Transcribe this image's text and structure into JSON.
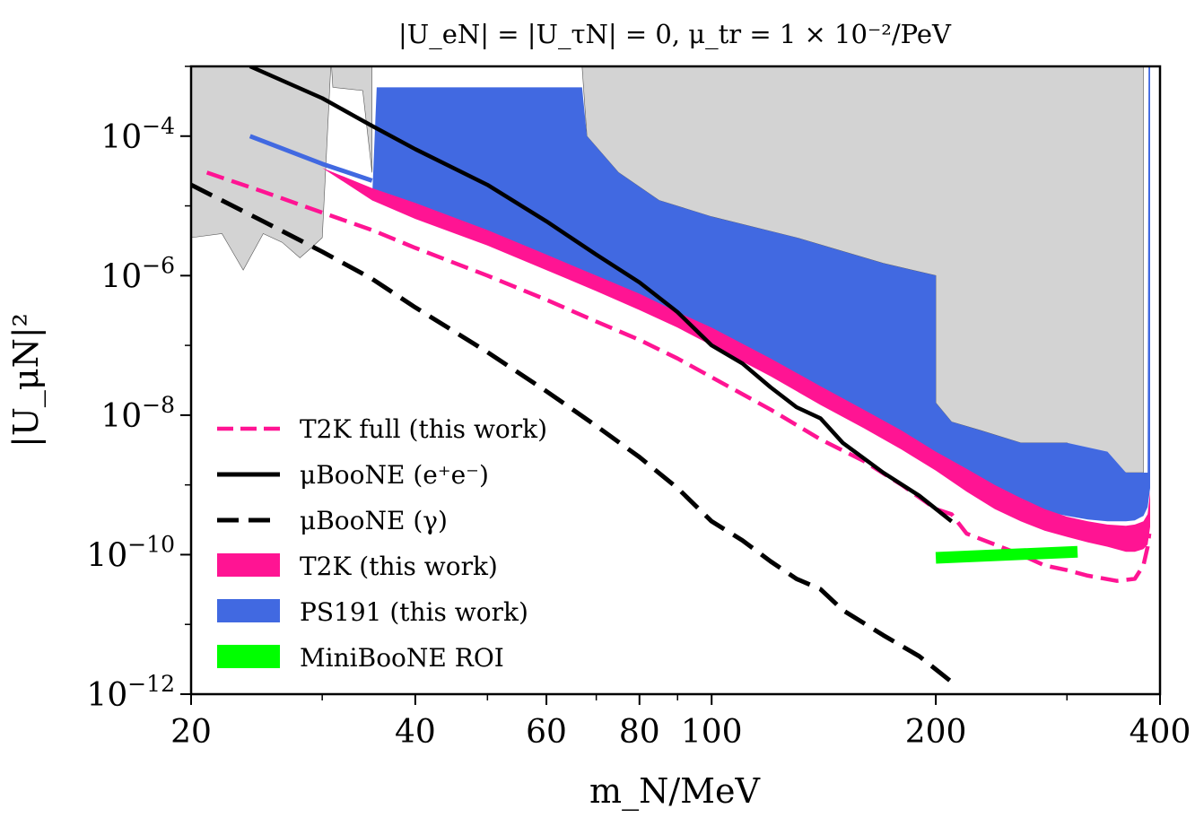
{
  "chart_data": {
    "type": "line",
    "title": "|U_eN| = |U_τN| = 0,  μ_tr = 1 × 10⁻²/PeV",
    "xlabel": "m_N/MeV",
    "ylabel": "|U_μN|²",
    "xscale": "log",
    "yscale": "log",
    "xlim": [
      20,
      400
    ],
    "ylim": [
      1e-12,
      0.001
    ],
    "x_ticks": [
      {
        "value": 20,
        "label": "20"
      },
      {
        "value": 40,
        "label": "40"
      },
      {
        "value": 60,
        "label": "60"
      },
      {
        "value": 80,
        "label": "80"
      },
      {
        "value": 100,
        "label": "100"
      },
      {
        "value": 200,
        "label": "200"
      },
      {
        "value": 400,
        "label": "400"
      }
    ],
    "y_ticks": [
      {
        "value": 1e-12,
        "base": "10",
        "exp": "−12"
      },
      {
        "value": 1e-10,
        "base": "10",
        "exp": "−10"
      },
      {
        "value": 1e-08,
        "base": "10",
        "exp": "−8"
      },
      {
        "value": 1e-06,
        "base": "10",
        "exp": "−6"
      },
      {
        "value": 0.0001,
        "base": "10",
        "exp": "−4"
      }
    ],
    "grid": false,
    "legend_position": "lower-left",
    "colors": {
      "t2k": "#ff1493",
      "ps191": "#4169e1",
      "miniboone": "#00ff00",
      "microboone": "#000000",
      "excluded": "#d3d3d3"
    },
    "excluded_region": {
      "upper_boundary": [
        [
          20,
          3.5e-06
        ],
        [
          22,
          4e-06
        ],
        [
          23.5,
          1.2e-06
        ],
        [
          25,
          4e-06
        ],
        [
          26.5,
          3e-06
        ],
        [
          28,
          1.8e-06
        ],
        [
          29,
          2.5e-06
        ],
        [
          30,
          3.5e-06
        ],
        [
          30.8,
          0.001
        ]
      ],
      "middle_boundary": [
        [
          30.8,
          0.001
        ],
        [
          31,
          0.0005
        ],
        [
          34,
          0.00045
        ],
        [
          35,
          3e-05
        ],
        [
          35,
          0.001
        ]
      ],
      "right_boundary": [
        [
          67,
          0.001
        ],
        [
          68,
          0.0001
        ],
        [
          75,
          3e-05
        ],
        [
          85,
          1.2e-05
        ],
        [
          100,
          7e-06
        ],
        [
          130,
          3.5e-06
        ],
        [
          170,
          1.5e-06
        ],
        [
          200,
          1e-06
        ],
        [
          200,
          1.5e-08
        ],
        [
          210,
          8e-09
        ],
        [
          230,
          6e-09
        ],
        [
          260,
          4e-09
        ],
        [
          300,
          4e-09
        ],
        [
          360,
          1.5e-09
        ],
        [
          380,
          1.5e-09
        ],
        [
          380,
          0.001
        ]
      ],
      "lower_boundary": [
        [
          20,
          4e-05
        ],
        [
          25,
          3e-05
        ],
        [
          30,
          1.8e-05
        ],
        [
          35,
          1.5e-05
        ]
      ]
    },
    "series": [
      {
        "name": "T2K full (this work)",
        "style": "dashed",
        "color": "#ff1493",
        "x": [
          21,
          25,
          30,
          35,
          40,
          50,
          60,
          70,
          80,
          90,
          100,
          120,
          140,
          160,
          180,
          200,
          210,
          220,
          240,
          260,
          280,
          300,
          320,
          350,
          370,
          380,
          385,
          387
        ],
        "y": [
          3e-05,
          1.6e-05,
          8e-06,
          4.5e-06,
          2.5e-06,
          1e-06,
          4.5e-07,
          2.2e-07,
          1.2e-07,
          6.5e-08,
          3.5e-08,
          1.2e-08,
          4.5e-09,
          2.2e-09,
          1e-09,
          4.5e-10,
          3.8e-10,
          2e-10,
          1.4e-10,
          1e-10,
          7e-11,
          6e-11,
          5e-11,
          4.2e-11,
          4.5e-11,
          7e-11,
          1.3e-10,
          2e-10
        ]
      },
      {
        "name": "μBooNE (e⁺e⁻)",
        "style": "solid",
        "color": "#000000",
        "x": [
          24,
          30,
          35,
          40,
          50,
          60,
          70,
          80,
          90,
          100,
          110,
          120,
          130,
          140,
          150,
          170,
          190,
          210
        ],
        "y": [
          0.001,
          0.00035,
          0.00014,
          6.5e-05,
          2e-05,
          6e-06,
          2e-06,
          8e-07,
          3e-07,
          1e-07,
          5.5e-08,
          2.5e-08,
          1.3e-08,
          9e-09,
          4e-09,
          1.5e-09,
          7e-10,
          3e-10
        ]
      },
      {
        "name": "μBooNE (γ)",
        "style": "dashed",
        "color": "#000000",
        "x": [
          20,
          25,
          30,
          35,
          40,
          50,
          60,
          70,
          80,
          90,
          100,
          110,
          120,
          130,
          140,
          150,
          170,
          190,
          210
        ],
        "y": [
          2e-05,
          6e-06,
          2.2e-06,
          9e-07,
          3.5e-07,
          8e-08,
          2.2e-08,
          7e-09,
          2.5e-09,
          9e-10,
          3e-10,
          1.6e-10,
          8e-11,
          4.5e-11,
          3.2e-11,
          1.6e-11,
          7e-12,
          3.5e-12,
          1.5e-12
        ]
      },
      {
        "name": "T2K (this work)",
        "style": "band",
        "color": "#ff1493",
        "x": [
          21,
          25,
          30,
          35,
          40,
          50,
          60,
          70,
          80,
          90,
          100,
          120,
          140,
          160,
          180,
          200,
          220,
          240,
          260,
          280,
          300,
          320,
          340,
          360,
          370,
          380,
          385,
          388
        ],
        "y_upper": [
          0.0001,
          6e-05,
          3.5e-05,
          1.8e-05,
          1.1e-05,
          4.5e-06,
          2e-06,
          1e-06,
          5.5e-07,
          3e-07,
          1.8e-07,
          6.5e-08,
          2.6e-08,
          1.2e-08,
          6e-09,
          3e-09,
          1.7e-09,
          1e-09,
          6.5e-10,
          4.5e-10,
          3.5e-10,
          3e-10,
          2.7e-10,
          2.6e-10,
          2.7e-10,
          3e-10,
          3.8e-10,
          8e-10
        ],
        "y_lower": [
          0.0001,
          6e-05,
          3.5e-05,
          1.2e-05,
          6.5e-06,
          2.7e-06,
          1.2e-06,
          6e-07,
          3.2e-07,
          1.8e-07,
          1e-07,
          3.6e-08,
          1.4e-08,
          6.5e-09,
          3.2e-09,
          1.6e-09,
          8e-10,
          4.5e-10,
          3e-10,
          2.2e-10,
          1.8e-10,
          1.5e-10,
          1.3e-10,
          1.1e-10,
          1.1e-10,
          1.2e-10,
          1.4e-10,
          2.5e-10
        ]
      },
      {
        "name": "PS191 (this work)",
        "style": "band",
        "color": "#4169e1",
        "x_upper": [
          35,
          35.5,
          67,
          68,
          75,
          85,
          100,
          130,
          170,
          200,
          200,
          210,
          230,
          260,
          300,
          340,
          360,
          380,
          385,
          386,
          388
        ],
        "y_upper": [
          1.2e-05,
          0.0005,
          0.0005,
          0.0001,
          3e-05,
          1.2e-05,
          7e-06,
          3.5e-06,
          1.5e-06,
          1e-06,
          1.5e-08,
          8e-09,
          6e-09,
          4e-09,
          4e-09,
          3e-09,
          1.5e-09,
          1.5e-09,
          1.5e-09,
          0.001,
          0.001
        ],
        "x_lower": [
          35,
          40,
          50,
          60,
          70,
          80,
          90,
          100,
          120,
          140,
          160,
          180,
          200,
          220,
          240,
          260,
          280,
          300,
          320,
          340,
          360,
          370,
          380,
          385,
          388
        ],
        "y_lower": [
          1.2e-05,
          7e-06,
          3e-06,
          1.4e-06,
          7e-07,
          3.8e-07,
          2.1e-07,
          1.2e-07,
          4.3e-08,
          1.7e-08,
          8e-09,
          4e-09,
          2.1e-09,
          1.2e-09,
          7.5e-10,
          5.3e-10,
          4.2e-10,
          3.6e-10,
          3.2e-10,
          3e-10,
          3e-10,
          3.1e-10,
          3.6e-10,
          4.8e-10,
          9e-10
        ]
      },
      {
        "name": "PS191 (this work)",
        "style": "solid",
        "color": "#4169e1",
        "x": [
          24,
          30,
          35
        ],
        "y": [
          0.0001,
          4e-05,
          2.3e-05
        ]
      },
      {
        "name": "MiniBooNE ROI",
        "style": "thick",
        "color": "#00ff00",
        "x": [
          200,
          310
        ],
        "y": [
          9e-11,
          1.1e-10
        ]
      }
    ],
    "legend": [
      {
        "label": "T2K full (this work)",
        "marker": "dashed",
        "color": "#ff1493"
      },
      {
        "label": "μBooNE (e⁺e⁻)",
        "marker": "solid",
        "color": "#000000"
      },
      {
        "label": "μBooNE (γ)",
        "marker": "dashed",
        "color": "#000000"
      },
      {
        "label": "T2K (this work)",
        "marker": "patch",
        "color": "#ff1493"
      },
      {
        "label": "PS191 (this work)",
        "marker": "patch",
        "color": "#4169e1"
      },
      {
        "label": "MiniBooNE ROI",
        "marker": "patch",
        "color": "#00ff00"
      }
    ]
  }
}
